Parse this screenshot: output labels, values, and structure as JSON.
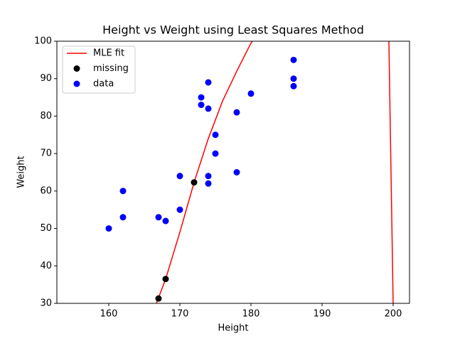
{
  "chart_data": {
    "type": "scatter",
    "title": "Height vs Weight using Least Squares Method",
    "x_label": "Height",
    "y_label": "Weight",
    "xlim": [
      152.7,
      202.3
    ],
    "ylim": [
      30,
      100
    ],
    "xticks": [
      160,
      170,
      180,
      190,
      200
    ],
    "yticks": [
      30,
      40,
      50,
      60,
      70,
      80,
      90,
      100
    ],
    "grid": false,
    "legend": "upper left",
    "series": [
      {
        "name": "MLE fit",
        "type": "line",
        "color": "#ff0000",
        "x": [
          166.7,
          168,
          170,
          172,
          174,
          176,
          178,
          180,
          180.2,
          null,
          199.4,
          200
        ],
        "values": [
          30,
          36.5,
          49,
          62.3,
          74,
          84,
          92,
          99.5,
          100,
          null,
          100,
          30
        ]
      },
      {
        "name": "missing",
        "type": "scatter",
        "color": "#000000",
        "x": [
          167,
          168,
          172
        ],
        "values": [
          31.3,
          36.5,
          62.3
        ]
      },
      {
        "name": "data",
        "type": "scatter",
        "color": "#0000ff",
        "x": [
          160,
          162,
          162,
          167,
          168,
          170,
          170,
          173,
          173,
          174,
          174,
          174,
          174,
          175,
          175,
          178,
          178,
          180,
          186,
          186,
          186
        ],
        "values": [
          50,
          60,
          53,
          53,
          52,
          64,
          55,
          85,
          83,
          89,
          82,
          64,
          62,
          75,
          70,
          81,
          65,
          86,
          95,
          90,
          88
        ]
      }
    ]
  }
}
